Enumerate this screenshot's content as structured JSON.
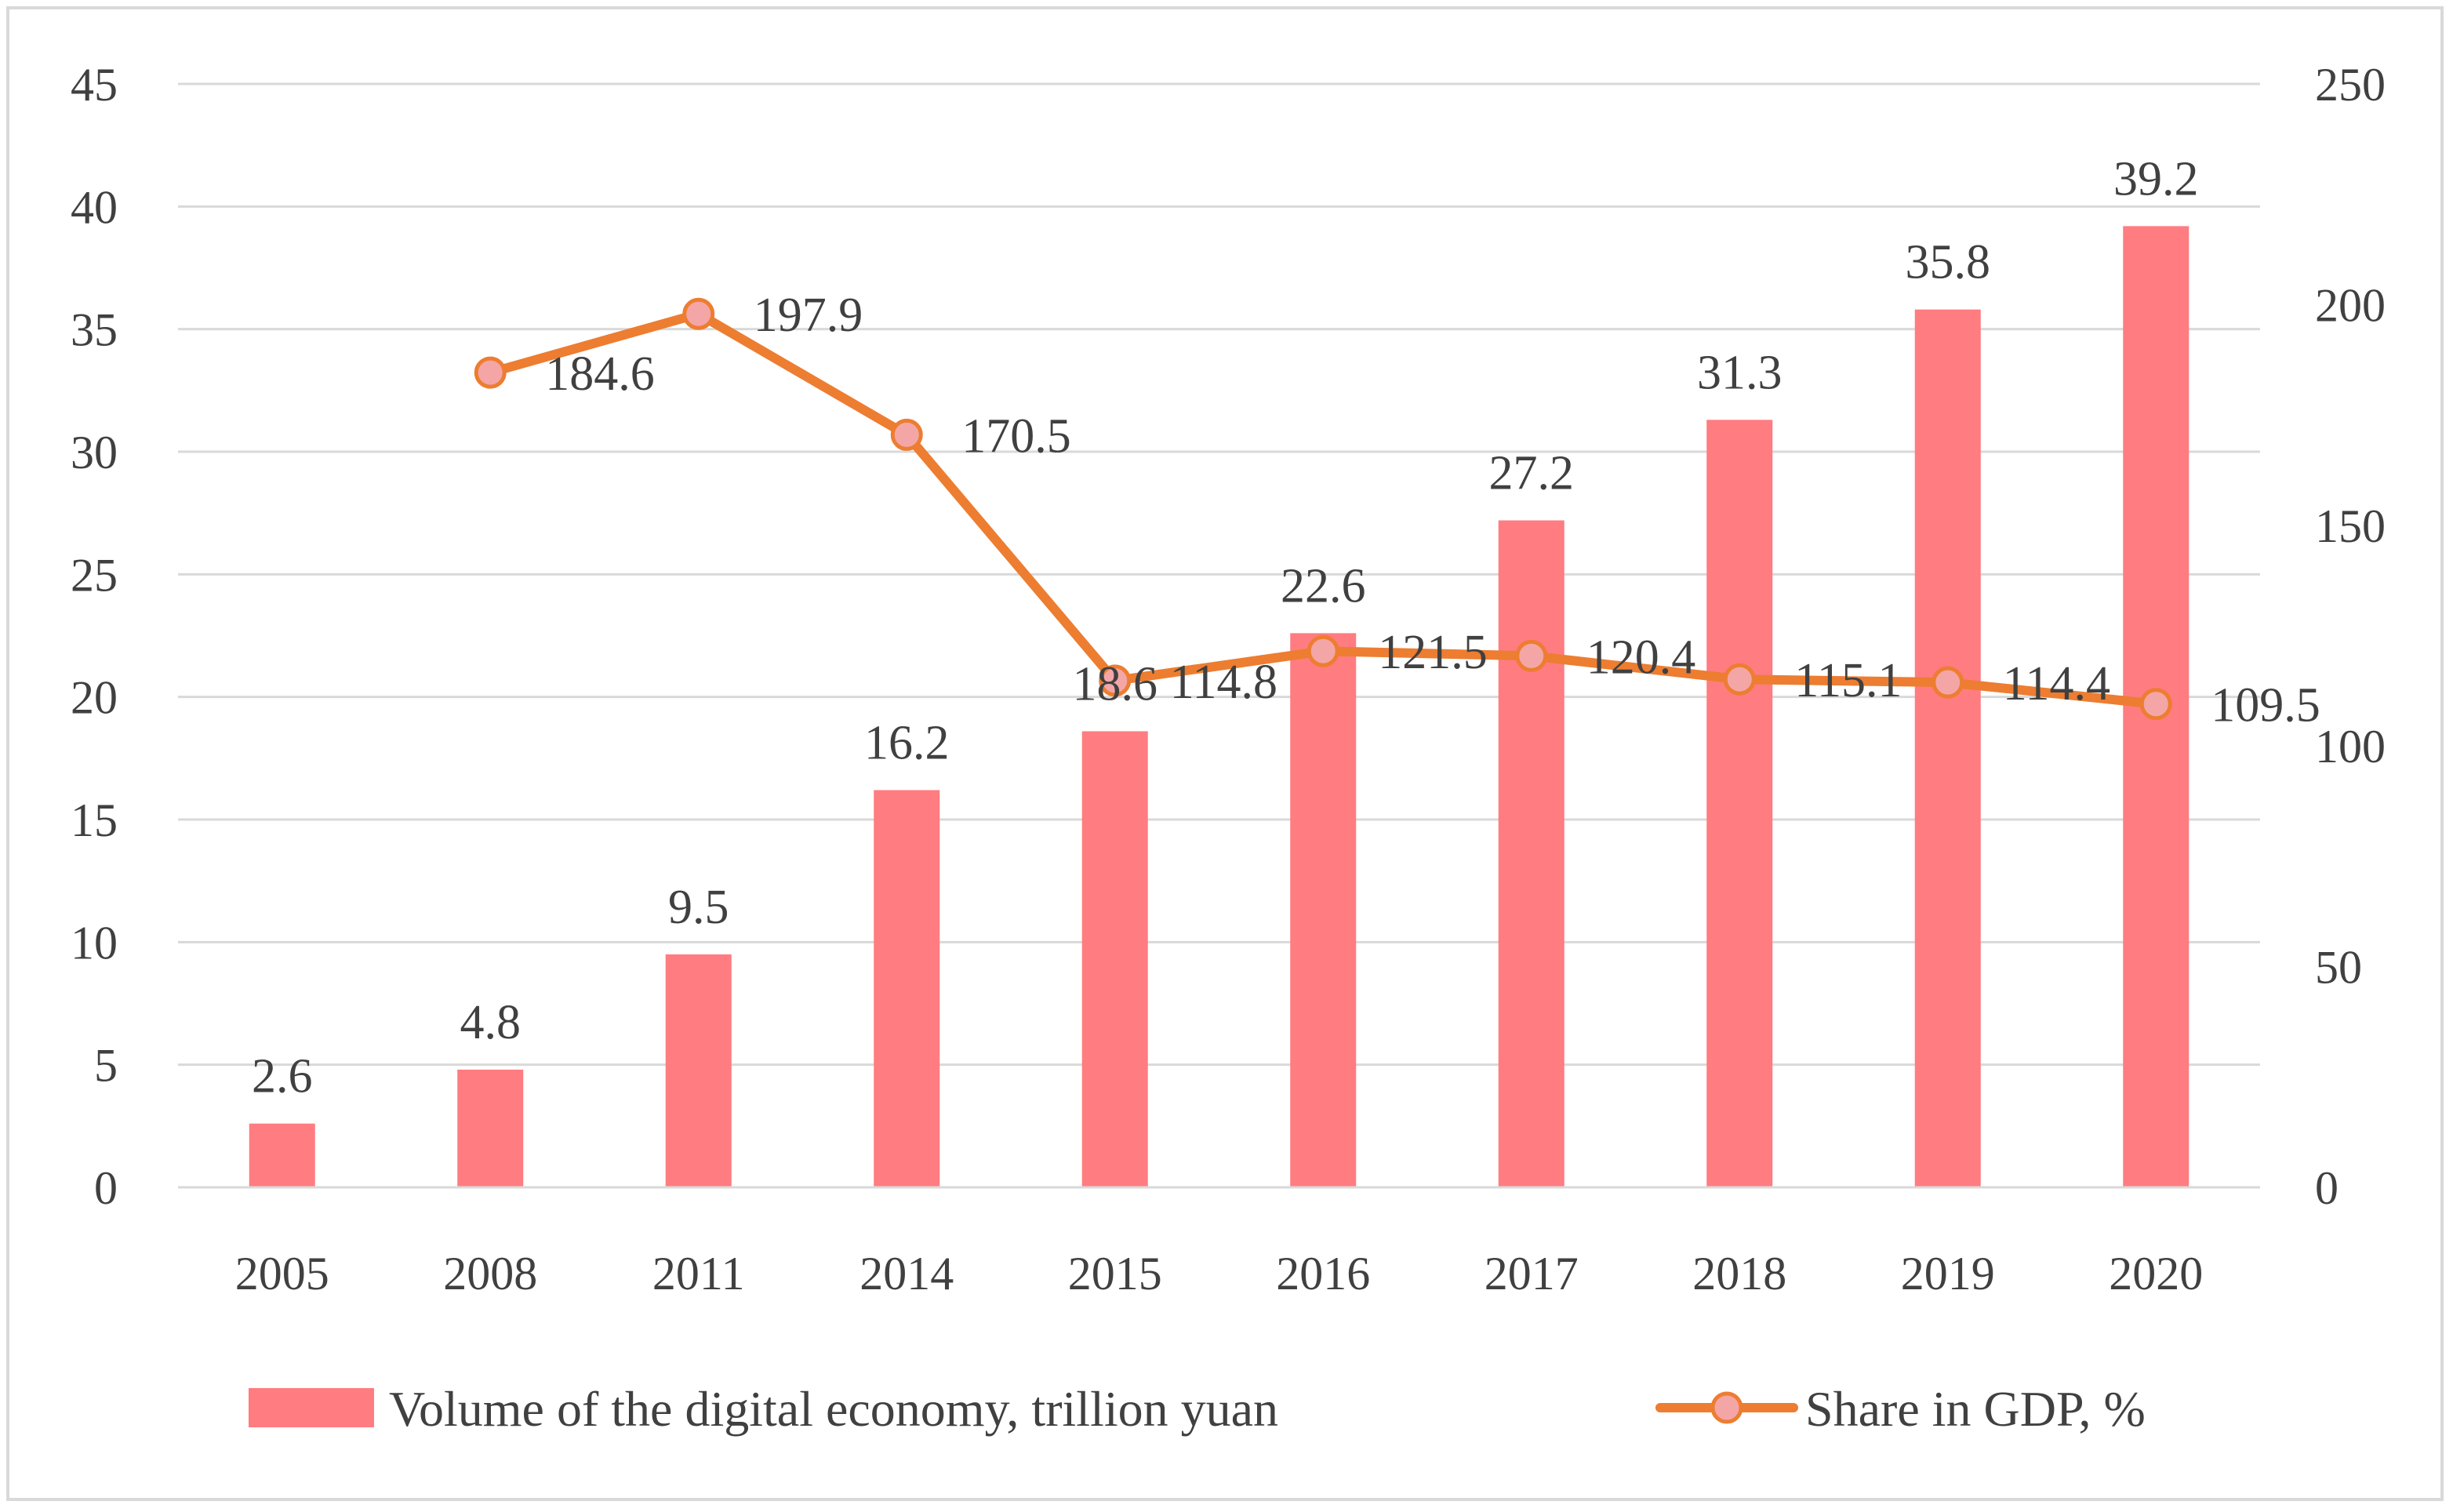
{
  "chart_data": {
    "type": "bar",
    "categories": [
      "2005",
      "2008",
      "2011",
      "2014",
      "2015",
      "2016",
      "2017",
      "2018",
      "2019",
      "2020"
    ],
    "series": [
      {
        "name": "Volume of the digital economy, trillion yuan",
        "type": "bar",
        "axis": "left",
        "color": "#FF7C80",
        "values": [
          2.6,
          4.8,
          9.5,
          16.2,
          18.6,
          22.6,
          27.2,
          31.3,
          35.8,
          39.2
        ],
        "labels": [
          "2.6",
          "4.8",
          "9.5",
          "16.2",
          "18.6",
          "22.6",
          "27.2",
          "31.3",
          "35.8",
          "39.2"
        ]
      },
      {
        "name": "Share in GDP, %",
        "type": "line",
        "axis": "right",
        "color": "#ED7D31",
        "marker_color": "#F4A6A6",
        "values": [
          null,
          184.6,
          197.9,
          170.5,
          114.8,
          121.5,
          120.4,
          115.1,
          114.4,
          109.5
        ],
        "labels": [
          "",
          "184.6",
          "197.9",
          "170.5",
          "114.8",
          "121.5",
          "120.4",
          "115.1",
          "114.4",
          "109.5"
        ]
      }
    ],
    "y_left": {
      "min": 0,
      "max": 45,
      "ticks": [
        "0",
        "5",
        "10",
        "15",
        "20",
        "25",
        "30",
        "35",
        "40",
        "45"
      ]
    },
    "y_right": {
      "min": 0,
      "max": 250,
      "ticks": [
        "0",
        "50",
        "100",
        "150",
        "200",
        "250"
      ]
    },
    "grid": true,
    "legend_position": "bottom"
  }
}
